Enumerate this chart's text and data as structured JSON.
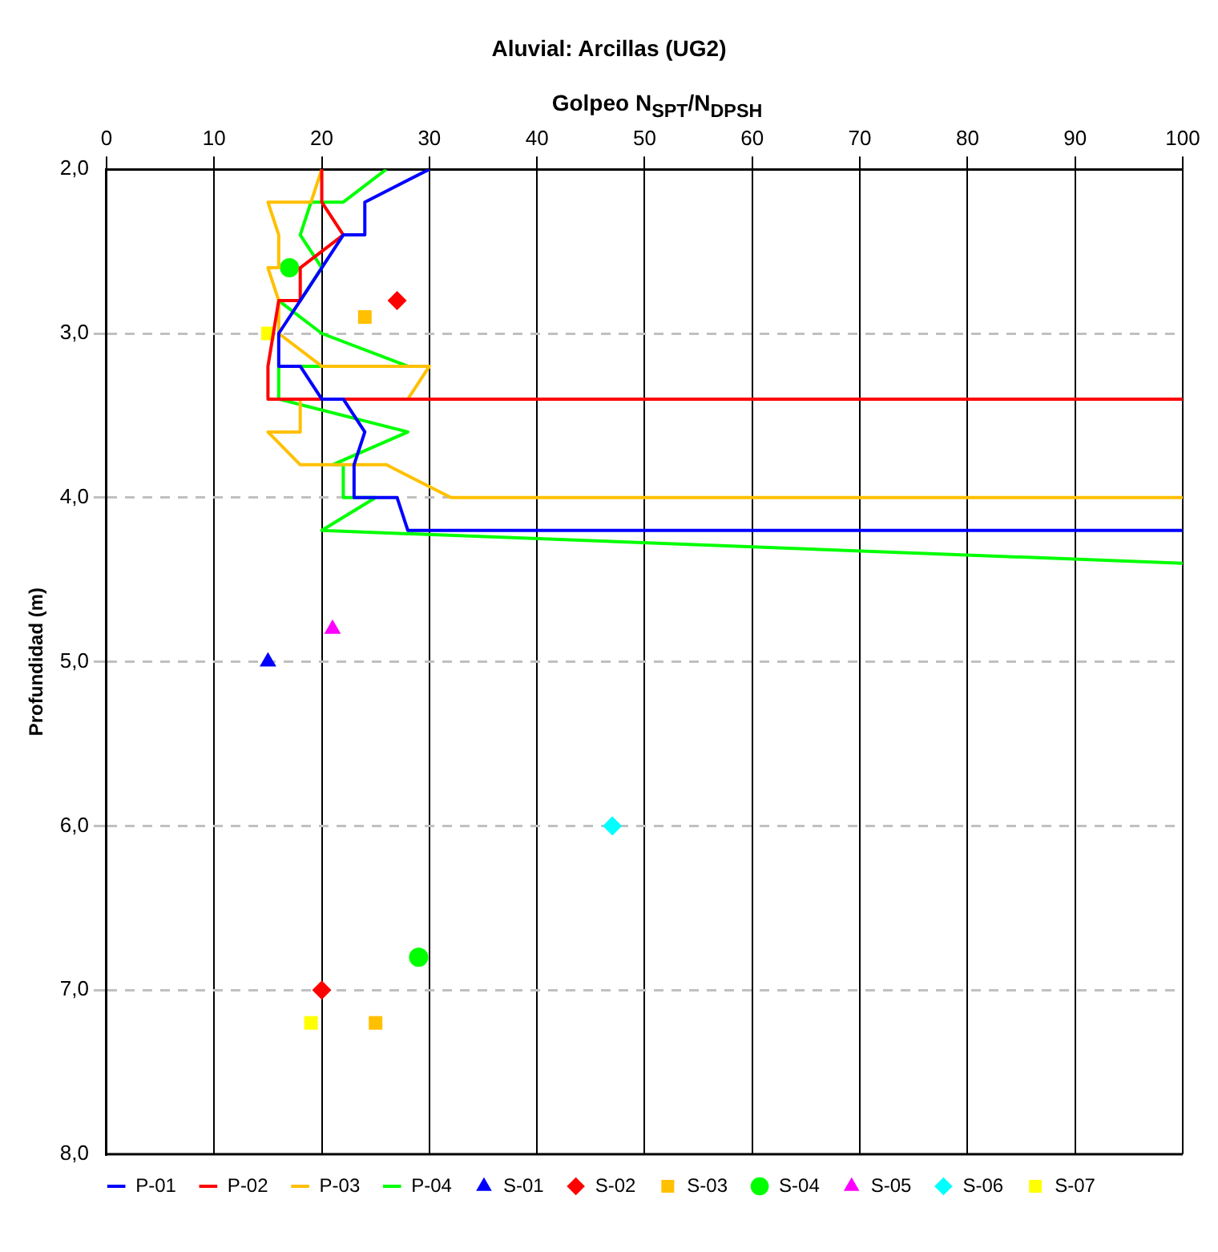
{
  "chart_data": {
    "type": "line",
    "title": "Aluvial: Arcillas (UG2)",
    "xlabel": "Golpeo N$_{SPT}$/N$_{DPSH}$",
    "ylabel": "Profundidad (m)",
    "xlim": [
      0,
      100
    ],
    "xticks": [
      0,
      10,
      20,
      30,
      40,
      50,
      60,
      70,
      80,
      90,
      100
    ],
    "ylim": [
      8,
      2
    ],
    "yticks": [
      {
        "value": 2,
        "label": "2,0"
      },
      {
        "value": 3,
        "label": "3,0"
      },
      {
        "value": 4,
        "label": "4,0"
      },
      {
        "value": 5,
        "label": "5,0"
      },
      {
        "value": 6,
        "label": "6,0"
      },
      {
        "value": 7,
        "label": "7,0"
      },
      {
        "value": 8,
        "label": "8,0"
      }
    ],
    "grid": true,
    "legend": "bottom",
    "line_style": "solid",
    "series": [
      {
        "name": "P-01",
        "color": "#0000ff",
        "marker": "none",
        "x": [
          30,
          24,
          24,
          22,
          20,
          18,
          16,
          16,
          18,
          20,
          22,
          24,
          23,
          23,
          27,
          28,
          100
        ],
        "values": [
          2.0,
          2.2,
          2.4,
          2.4,
          2.6,
          2.8,
          3.0,
          3.2,
          3.2,
          3.4,
          3.4,
          3.6,
          3.8,
          4.0,
          4.0,
          4.2,
          4.2
        ]
      },
      {
        "name": "P-02",
        "color": "#ff0000",
        "marker": "none",
        "x": [
          20,
          20,
          22,
          18,
          18,
          16,
          15,
          15,
          100
        ],
        "values": [
          2.0,
          2.2,
          2.4,
          2.6,
          2.8,
          2.8,
          3.2,
          3.4,
          3.4
        ]
      },
      {
        "name": "P-03",
        "color": "#ffc000",
        "marker": "none",
        "x": [
          20,
          19,
          15,
          16,
          16,
          15,
          16,
          16,
          20,
          30,
          28,
          18,
          18,
          15,
          18,
          26,
          32,
          100
        ],
        "values": [
          2.0,
          2.2,
          2.2,
          2.4,
          2.6,
          2.6,
          2.8,
          3.0,
          3.2,
          3.2,
          3.4,
          3.4,
          3.6,
          3.6,
          3.8,
          3.8,
          4.0,
          4.0
        ]
      },
      {
        "name": "P-04",
        "color": "#00ff00",
        "marker": "none",
        "x": [
          26,
          22,
          19,
          18,
          20,
          18,
          16,
          20,
          28,
          16,
          16,
          28,
          21,
          22,
          22,
          25,
          20,
          100
        ],
        "values": [
          2.0,
          2.2,
          2.2,
          2.4,
          2.6,
          2.8,
          2.8,
          3.0,
          3.2,
          3.2,
          3.4,
          3.6,
          3.8,
          3.8,
          4.0,
          4.0,
          4.2,
          4.4
        ]
      },
      {
        "name": "S-01",
        "type": "scatter",
        "color": "#0000ff",
        "marker": "triangle",
        "x": [
          15
        ],
        "values": [
          5.0
        ]
      },
      {
        "name": "S-02",
        "type": "scatter",
        "color": "#ff0000",
        "marker": "diamond",
        "x": [
          27,
          20
        ],
        "values": [
          2.8,
          7.0
        ]
      },
      {
        "name": "S-03",
        "type": "scatter",
        "color": "#ffc000",
        "marker": "square",
        "x": [
          24,
          25
        ],
        "values": [
          2.9,
          7.2
        ]
      },
      {
        "name": "S-04",
        "type": "scatter",
        "color": "#00ff00",
        "marker": "circle",
        "x": [
          17,
          29
        ],
        "values": [
          2.6,
          6.8
        ]
      },
      {
        "name": "S-05",
        "type": "scatter",
        "color": "#ff00ff",
        "marker": "triangle",
        "x": [
          21
        ],
        "values": [
          4.8
        ]
      },
      {
        "name": "S-06",
        "type": "scatter",
        "color": "#00ffff",
        "marker": "diamond",
        "x": [
          47
        ],
        "values": [
          6.0
        ]
      },
      {
        "name": "S-07",
        "type": "scatter",
        "color": "#ffff00",
        "marker": "square",
        "x": [
          15,
          19
        ],
        "values": [
          3.0,
          7.2
        ]
      }
    ]
  }
}
